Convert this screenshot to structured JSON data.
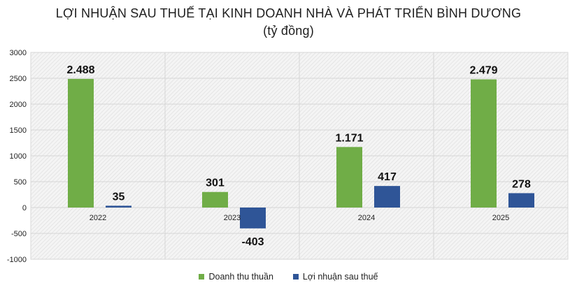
{
  "chart_data": {
    "type": "bar",
    "title": "LỢI NHUẬN SAU THUẾ TẠI KINH DOANH NHÀ VÀ PHÁT TRIỂN BÌNH DƯƠNG",
    "subtitle": "(tỷ đồng)",
    "categories": [
      "2022",
      "2023",
      "2024",
      "2025"
    ],
    "series": [
      {
        "name": "Doanh thu thuần",
        "color": "#70ad47",
        "values": [
          2488,
          301,
          1171,
          2479
        ],
        "labels": [
          "2.488",
          "301",
          "1.171",
          "2.479"
        ]
      },
      {
        "name": "Lợi nhuận sau thuế",
        "color": "#2f5597",
        "values": [
          35,
          -403,
          417,
          278
        ],
        "labels": [
          "35",
          "-403",
          "417",
          "278"
        ]
      }
    ],
    "ylim": [
      -1000,
      3000
    ],
    "yticks": [
      3000,
      2500,
      2000,
      1500,
      1000,
      500,
      0,
      -500,
      -1000
    ],
    "xlabel": "",
    "ylabel": "",
    "legend": "bottom",
    "grid": true
  }
}
